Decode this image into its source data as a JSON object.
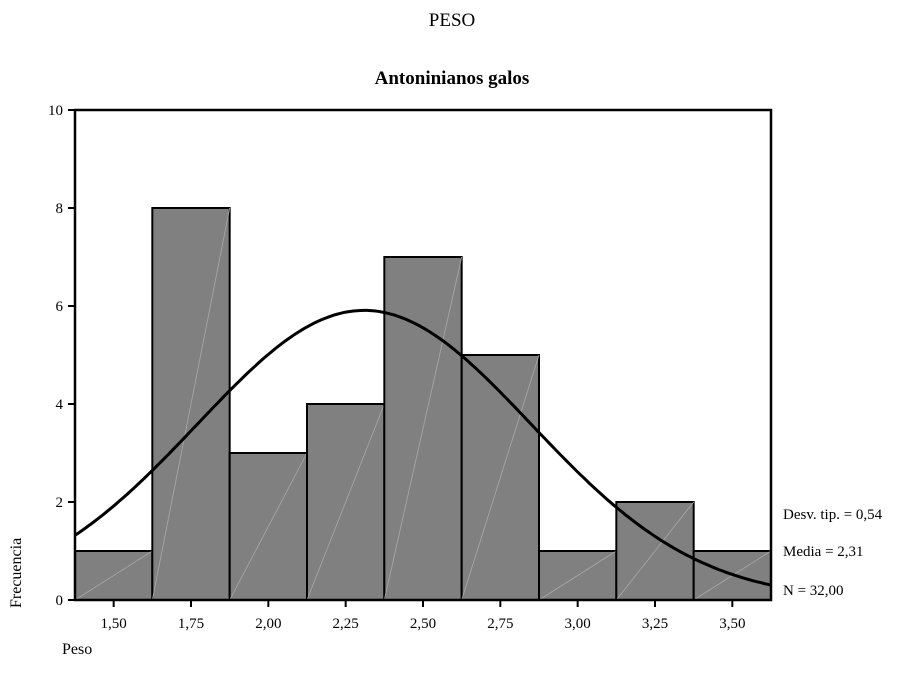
{
  "super_title": "PESO",
  "chart_data": {
    "type": "bar",
    "title": "Antoninianos galos",
    "xlabel": "Peso",
    "ylabel": "Frecuencia",
    "categories": [
      "1,50",
      "1,75",
      "2,00",
      "2,25",
      "2,50",
      "2,75",
      "3,00",
      "3,25",
      "3,50"
    ],
    "bin_centers": [
      1.5,
      1.75,
      2.0,
      2.25,
      2.5,
      2.75,
      3.0,
      3.25,
      3.5
    ],
    "bin_width": 0.25,
    "values": [
      1,
      8,
      3,
      4,
      7,
      5,
      1,
      2,
      1
    ],
    "xlim": [
      1.375,
      3.625
    ],
    "ylim": [
      0,
      10
    ],
    "yticks": [
      0,
      2,
      4,
      6,
      8,
      10
    ],
    "normal_curve": {
      "mean": 2.31,
      "sd": 0.54,
      "n": 32
    },
    "bar_color": "#808080",
    "grid": false,
    "stats": {
      "sd_label": "Desv. tip. = 0,54",
      "mean_label": "Media = 2,31",
      "n_label": "N = 32,00"
    }
  }
}
